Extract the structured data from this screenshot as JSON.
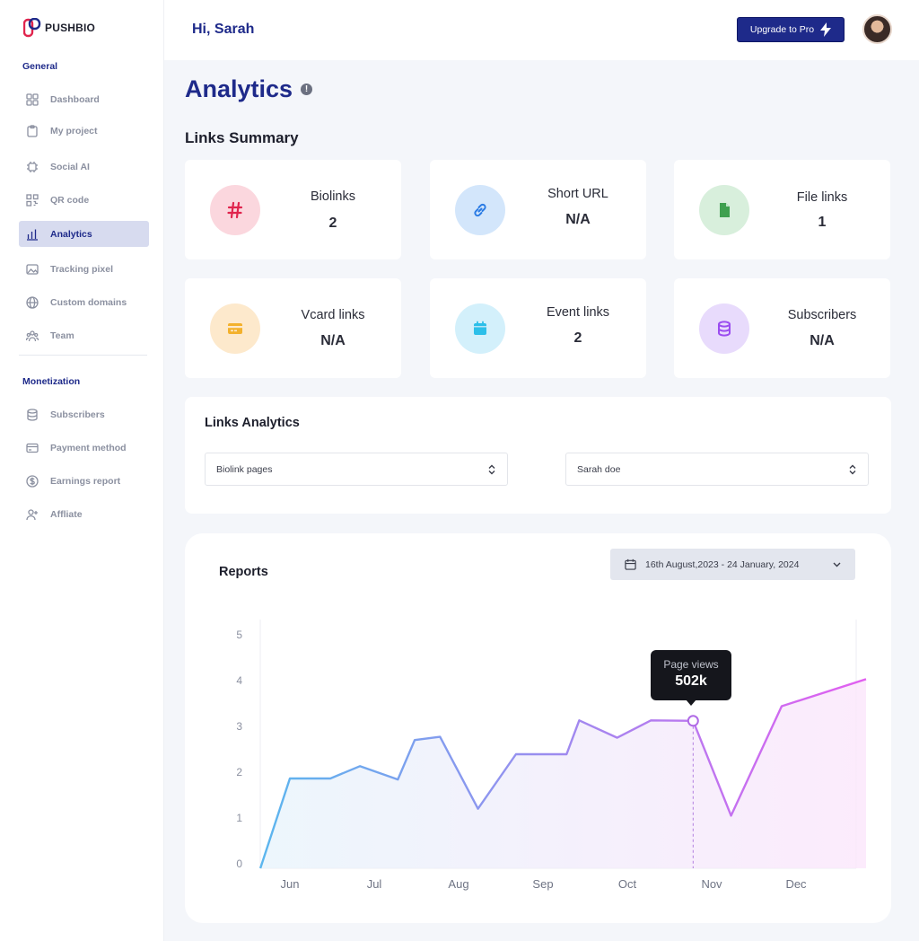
{
  "brand": {
    "name": "PUSHBIO"
  },
  "sidebar": {
    "general_title": "General",
    "monetization_title": "Monetization",
    "general_items": [
      {
        "label": "Dashboard",
        "icon": "grid-icon"
      },
      {
        "label": "My project",
        "icon": "clipboard-icon"
      },
      {
        "label": "Social AI",
        "icon": "chip-icon"
      },
      {
        "label": "QR code",
        "icon": "qr-icon"
      },
      {
        "label": "Analytics",
        "icon": "bar-chart-icon",
        "active": true
      },
      {
        "label": "Tracking pixel",
        "icon": "image-icon"
      },
      {
        "label": "Custom domains",
        "icon": "globe-icon"
      },
      {
        "label": "Team",
        "icon": "team-icon"
      }
    ],
    "monetization_items": [
      {
        "label": "Subscribers",
        "icon": "database-icon"
      },
      {
        "label": "Payment method",
        "icon": "credit-card-icon"
      },
      {
        "label": "Earnings report",
        "icon": "dollar-icon"
      },
      {
        "label": "Affliate",
        "icon": "user-plus-icon"
      }
    ]
  },
  "header": {
    "greeting": "Hi, Sarah",
    "upgrade_label": "Upgrade to Pro"
  },
  "main": {
    "title": "Analytics",
    "summary_heading": "Links Summary",
    "cards": [
      {
        "label": "Biolinks",
        "value": "2",
        "icon": "hash-icon",
        "bg": "#fbd7de",
        "fg": "#e0244d"
      },
      {
        "label": "Short URL",
        "value": "N/A",
        "icon": "link-icon",
        "bg": "#d3e6fb",
        "fg": "#2a7be4"
      },
      {
        "label": "File links",
        "value": "1",
        "icon": "file-icon",
        "bg": "#d8efdc",
        "fg": "#3fa04f"
      },
      {
        "label": "Vcard links",
        "value": "N/A",
        "icon": "card-icon",
        "bg": "#fde9cc",
        "fg": "#f3b12c"
      },
      {
        "label": "Event links",
        "value": "2",
        "icon": "calendar-icon",
        "bg": "#d3f0fb",
        "fg": "#2cbfe9"
      },
      {
        "label": "Subscribers",
        "value": "N/A",
        "icon": "database-icon",
        "bg": "#e8dbfc",
        "fg": "#9b4df0"
      }
    ],
    "links_analytics": {
      "title": "Links Analytics",
      "select_type": "Biolink pages",
      "select_user": "Sarah doe"
    },
    "reports": {
      "title": "Reports",
      "date_range": "16th August,2023  -  24 January, 2024",
      "tooltip_label": "Page views",
      "tooltip_value": "502k"
    }
  },
  "colors": {
    "brand": "#1e2a8a",
    "line_start": "#5bb6ee",
    "line_end": "#e25ef0"
  },
  "chart_data": {
    "type": "line",
    "x_labels": [
      "Jun",
      "Jul",
      "Aug",
      "Sep",
      "Oct",
      "Nov",
      "Dec"
    ],
    "y_ticks": [
      0,
      1,
      2,
      3,
      4,
      5
    ],
    "ylim": [
      0,
      5
    ],
    "series": [
      {
        "x": [
          -0.35,
          0.0,
          0.48,
          0.83,
          1.28,
          1.48,
          1.78,
          2.23,
          2.68,
          3.28,
          3.43,
          3.88,
          4.28,
          4.78,
          5.23,
          5.83,
          6.83
        ],
        "values": [
          0.0,
          1.96,
          1.96,
          2.23,
          1.94,
          2.8,
          2.87,
          1.3,
          2.49,
          2.49,
          3.23,
          2.85,
          3.23,
          3.22,
          1.15,
          3.54,
          4.13
        ]
      }
    ],
    "highlight": {
      "x": 4.78,
      "label": "Page views",
      "value": "502k"
    }
  }
}
